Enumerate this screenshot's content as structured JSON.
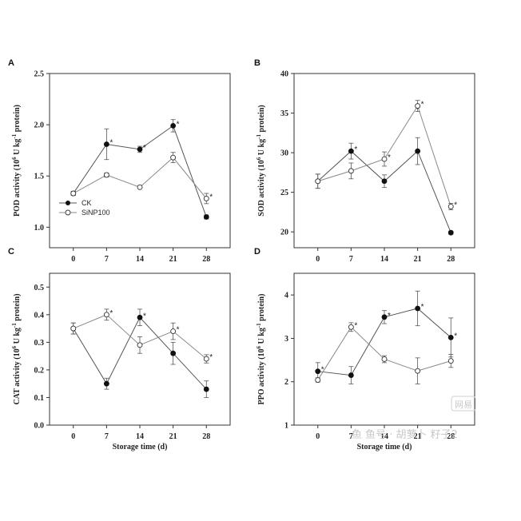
{
  "figure": {
    "watermark_text": "鱼 鱼号 · 胡萝卜 籽子2",
    "watermark_logo": "网易"
  },
  "legend": {
    "ck": "CK",
    "sinp": "SiNP100"
  },
  "chart_data": [
    {
      "type": "line",
      "panel": "A",
      "ylabel_main": "POD activity (10",
      "ylabel_sup": "6",
      "ylabel_tail": " U kg",
      "ylabel_sup2": "-1",
      "ylabel_end": " protein)",
      "xlabel": "",
      "categories": [
        "0",
        "7",
        "14",
        "21",
        "28"
      ],
      "x": [
        0,
        7,
        14,
        21,
        28
      ],
      "ylim": [
        0.5,
        2.5
      ],
      "yticks": [
        1.0,
        1.5,
        2.0,
        2.5
      ],
      "ytick_labels": [
        "1.0",
        "1.5",
        "2.0",
        "2.5"
      ],
      "ylim_display": [
        0.8,
        2.5
      ],
      "series": [
        {
          "name": "CK",
          "marker": "filled",
          "values": [
            1.33,
            1.81,
            1.76,
            1.99,
            1.1
          ],
          "errors": [
            0.02,
            0.15,
            0.03,
            0.06,
            0.02
          ]
        },
        {
          "name": "SiNP100",
          "marker": "open",
          "values": [
            1.33,
            1.51,
            1.39,
            1.68,
            1.28
          ],
          "errors": [
            0.02,
            0.02,
            0.01,
            0.05,
            0.05
          ]
        }
      ],
      "significance": [
        {
          "series": 0,
          "index": 1
        },
        {
          "series": 0,
          "index": 2
        },
        {
          "series": 0,
          "index": 3
        },
        {
          "series": 1,
          "index": 4
        }
      ],
      "legend": "lower-left"
    },
    {
      "type": "line",
      "panel": "B",
      "ylabel_main": "SOD activity (10",
      "ylabel_sup": "6",
      "ylabel_tail": " U kg",
      "ylabel_sup2": "-1",
      "ylabel_end": " protein)",
      "xlabel": "",
      "categories": [
        "0",
        "7",
        "14",
        "21",
        "28"
      ],
      "x": [
        0,
        7,
        14,
        21,
        28
      ],
      "ylim": [
        18,
        40
      ],
      "yticks": [
        20,
        25,
        30,
        35,
        40
      ],
      "ytick_labels": [
        "20",
        "25",
        "30",
        "35",
        "40"
      ],
      "series": [
        {
          "name": "CK",
          "marker": "filled",
          "values": [
            26.4,
            30.2,
            26.4,
            30.2,
            19.9
          ],
          "errors": [
            0.9,
            1.0,
            0.8,
            1.7,
            0.2
          ]
        },
        {
          "name": "SiNP100",
          "marker": "open",
          "values": [
            26.4,
            27.7,
            29.2,
            35.9,
            23.2
          ],
          "errors": [
            0.9,
            1.0,
            0.9,
            0.7,
            0.4
          ]
        }
      ],
      "significance": [
        {
          "series": 0,
          "index": 1
        },
        {
          "series": 1,
          "index": 2
        },
        {
          "series": 1,
          "index": 3
        },
        {
          "series": 1,
          "index": 4
        }
      ]
    },
    {
      "type": "line",
      "panel": "C",
      "ylabel_main": "CAT activity (10",
      "ylabel_sup": "6",
      "ylabel_tail": " U kg",
      "ylabel_sup2": "-1",
      "ylabel_end": " protein)",
      "xlabel": "Storage time (d)",
      "categories": [
        "0",
        "7",
        "14",
        "21",
        "28"
      ],
      "x": [
        0,
        7,
        14,
        21,
        28
      ],
      "ylim": [
        0.0,
        0.55
      ],
      "yticks": [
        0.0,
        0.1,
        0.2,
        0.3,
        0.4,
        0.5
      ],
      "ytick_labels": [
        "0.0",
        "0.1",
        "0.2",
        "0.3",
        "0.4",
        "0.5"
      ],
      "series": [
        {
          "name": "CK",
          "marker": "filled",
          "values": [
            0.35,
            0.15,
            0.39,
            0.26,
            0.13
          ],
          "errors": [
            0.02,
            0.02,
            0.03,
            0.04,
            0.03
          ]
        },
        {
          "name": "SiNP100",
          "marker": "open",
          "values": [
            0.35,
            0.4,
            0.29,
            0.34,
            0.24
          ],
          "errors": [
            0.02,
            0.02,
            0.03,
            0.03,
            0.015
          ]
        }
      ],
      "significance": [
        {
          "series": 1,
          "index": 1
        },
        {
          "series": 0,
          "index": 2
        },
        {
          "series": 1,
          "index": 3
        },
        {
          "series": 1,
          "index": 4
        }
      ]
    },
    {
      "type": "line",
      "panel": "D",
      "ylabel_main": "PPO activity (10",
      "ylabel_sup": "6",
      "ylabel_tail": " U kg",
      "ylabel_sup2": "-1",
      "ylabel_end": " protein)",
      "xlabel": "Storage time (d)",
      "categories": [
        "0",
        "7",
        "14",
        "21",
        "28"
      ],
      "x": [
        0,
        7,
        14,
        21,
        28
      ],
      "ylim": [
        1,
        4.5
      ],
      "yticks": [
        1,
        2,
        3,
        4
      ],
      "ytick_labels": [
        "1",
        "2",
        "3",
        "4"
      ],
      "series": [
        {
          "name": "CK",
          "marker": "filled",
          "values": [
            2.24,
            2.15,
            3.49,
            3.69,
            3.02
          ],
          "errors": [
            0.2,
            0.2,
            0.15,
            0.4,
            0.45
          ]
        },
        {
          "name": "SiNP100",
          "marker": "open",
          "values": [
            2.04,
            3.26,
            2.52,
            2.25,
            2.48
          ],
          "errors": [
            0.05,
            0.1,
            0.08,
            0.3,
            0.15
          ]
        }
      ],
      "significance": [
        {
          "series": 0,
          "index": 0
        },
        {
          "series": 1,
          "index": 1
        },
        {
          "series": 0,
          "index": 2
        },
        {
          "series": 0,
          "index": 3
        },
        {
          "series": 0,
          "index": 4
        }
      ]
    }
  ]
}
